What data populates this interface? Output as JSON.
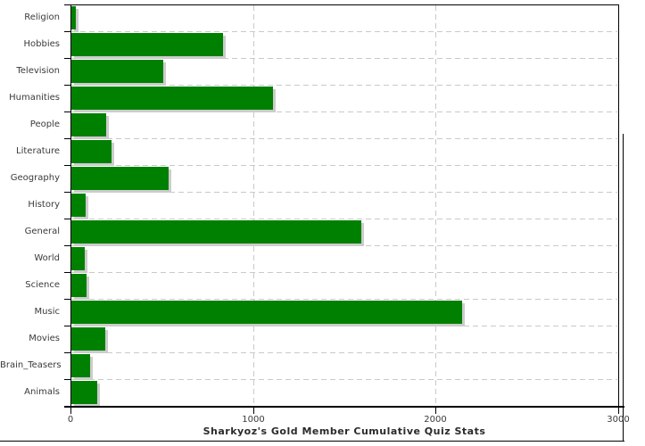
{
  "chart_data": {
    "type": "bar",
    "orientation": "horizontal",
    "title": "Sharkyoz's Gold Member Cumulative Quiz Stats",
    "categories": [
      "Religion",
      "Hobbies",
      "Television",
      "Humanities",
      "People",
      "Literature",
      "Geography",
      "History",
      "General",
      "World",
      "Science",
      "Music",
      "Movies",
      "Brain_Teasers",
      "Animals"
    ],
    "values": [
      25,
      830,
      505,
      1105,
      190,
      220,
      535,
      80,
      1590,
      75,
      85,
      2140,
      185,
      105,
      140
    ],
    "xlabel": "",
    "ylabel": "",
    "xlim": [
      0,
      3000
    ],
    "x_ticks": [
      0,
      1000,
      2000,
      3000
    ],
    "x_tick_labels": [
      "0",
      "1000",
      "2000",
      "3000"
    ],
    "grid": true,
    "legend": false,
    "colors": {
      "bar": "#008000",
      "bar_shadow": "#cccccc",
      "grid": "#c9c9c9",
      "axis": "#000000",
      "text": "#3a3a3a"
    }
  }
}
